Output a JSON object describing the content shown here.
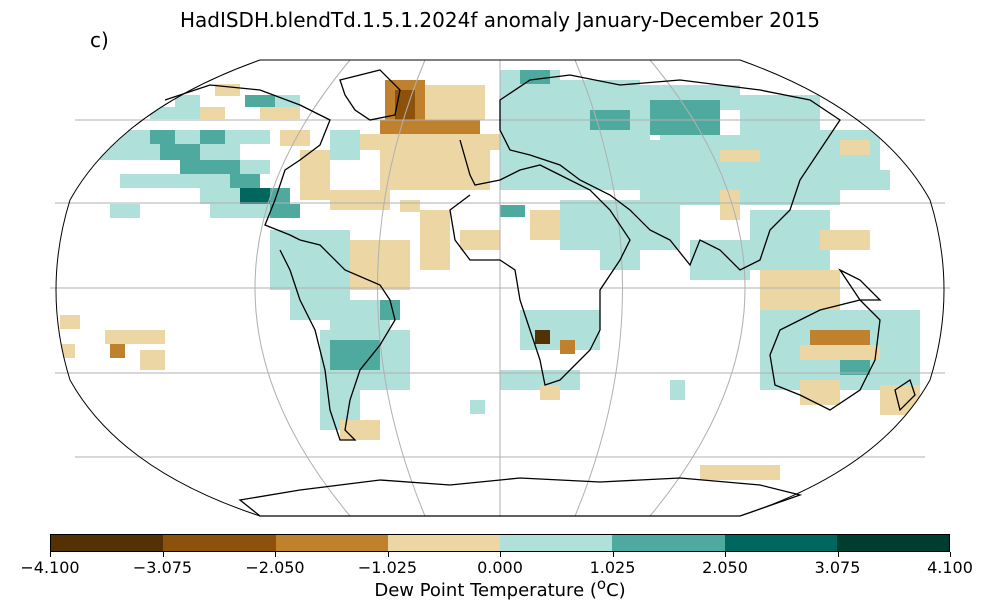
{
  "title": "HadISDH.blendTd.1.5.1.2024f anomaly January-December 2015",
  "panel_label": "c)",
  "colorbar": {
    "label_prefix": "Dew Point Temperature (",
    "label_unit_sup": "o",
    "label_suffix": "C)",
    "ticks": [
      "−4.100",
      "−3.075",
      "−2.050",
      "−1.025",
      "0.000",
      "1.025",
      "2.050",
      "3.075",
      "4.100"
    ],
    "colors": [
      "#543005",
      "#8c510a",
      "#bf812d",
      "#ecd7a4",
      "#b0e0da",
      "#4eaa9e",
      "#01665e",
      "#003c30"
    ]
  }
}
